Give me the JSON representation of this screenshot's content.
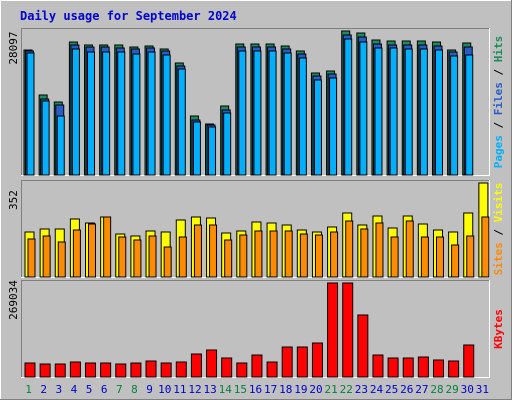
{
  "title": "Daily usage for September 2024",
  "colors": {
    "background": "#C0C0C0",
    "panel_bg": "#C0C0C0",
    "title": "#0000CC",
    "hits": "#1E8C5A",
    "files": "#2A5CC8",
    "pages": "#00B0FF",
    "visits": "#FFFF00",
    "sites": "#FF8C00",
    "kbytes": "#FF0000",
    "weekend_label": "#008040",
    "weekday_label": "#0000CC"
  },
  "chart_data": [
    {
      "type": "bar",
      "panel": "hits_files_pages",
      "ymax_label": "28097",
      "ymax": 28097,
      "legend": [
        "Pages",
        "Files",
        "Hits"
      ],
      "categories": [
        "1",
        "2",
        "3",
        "4",
        "5",
        "6",
        "7",
        "8",
        "9",
        "10",
        "11",
        "12",
        "13",
        "14",
        "15",
        "16",
        "17",
        "18",
        "19",
        "20",
        "21",
        "22",
        "23",
        "24",
        "25",
        "26",
        "27",
        "28",
        "29",
        "30",
        "31"
      ],
      "series": [
        {
          "name": "Hits",
          "values": [
            24440,
            15680,
            14270,
            25990,
            25310,
            25310,
            25310,
            25030,
            25240,
            24660,
            21830,
            11490,
            10040,
            13370,
            25560,
            25510,
            25560,
            25190,
            24100,
            19880,
            20250,
            28097,
            27710,
            26330,
            26210,
            26060,
            26060,
            25970,
            24440,
            25780,
            0
          ]
        },
        {
          "name": "Files",
          "values": [
            24200,
            14850,
            13600,
            25450,
            24900,
            24900,
            24750,
            24500,
            24750,
            24100,
            21300,
            10750,
            9670,
            12680,
            25050,
            25000,
            25050,
            24670,
            23570,
            19370,
            19700,
            27300,
            26960,
            25580,
            25460,
            25300,
            25300,
            25250,
            23930,
            25000,
            0
          ]
        },
        {
          "name": "Pages",
          "values": [
            23810,
            14410,
            11550,
            24660,
            24070,
            24070,
            23990,
            23590,
            24070,
            23440,
            20650,
            10400,
            9280,
            12140,
            24280,
            24150,
            24280,
            23890,
            22750,
            18590,
            18920,
            26540,
            25990,
            24790,
            24700,
            24580,
            24510,
            24450,
            23130,
            23420,
            0
          ]
        }
      ]
    },
    {
      "type": "bar",
      "panel": "visits_sites",
      "ymax_label": "352",
      "ymax": 352,
      "legend": [
        "Sites",
        "Visits"
      ],
      "categories": [
        "1",
        "2",
        "3",
        "4",
        "5",
        "6",
        "7",
        "8",
        "9",
        "10",
        "11",
        "12",
        "13",
        "14",
        "15",
        "16",
        "17",
        "18",
        "19",
        "20",
        "21",
        "22",
        "23",
        "24",
        "25",
        "26",
        "27",
        "28",
        "29",
        "30",
        "31"
      ],
      "series": [
        {
          "name": "Visits",
          "values": [
            170,
            178,
            178,
            218,
            202,
            226,
            160,
            152,
            172,
            170,
            214,
            226,
            220,
            166,
            172,
            206,
            202,
            196,
            176,
            170,
            188,
            238,
            196,
            230,
            182,
            230,
            200,
            176,
            170,
            238,
            352
          ]
        },
        {
          "name": "Sites",
          "values": [
            142,
            152,
            132,
            176,
            198,
            224,
            148,
            140,
            152,
            114,
            148,
            194,
            194,
            140,
            156,
            172,
            172,
            172,
            162,
            156,
            168,
            210,
            180,
            204,
            148,
            210,
            148,
            148,
            118,
            154,
            224
          ]
        }
      ]
    },
    {
      "type": "bar",
      "panel": "kbytes",
      "ymax_label": "269034",
      "ymax": 269034,
      "legend": [
        "KBytes"
      ],
      "categories": [
        "1",
        "2",
        "3",
        "4",
        "5",
        "6",
        "7",
        "8",
        "9",
        "10",
        "11",
        "12",
        "13",
        "14",
        "15",
        "16",
        "17",
        "18",
        "19",
        "20",
        "21",
        "22",
        "23",
        "24",
        "25",
        "26",
        "27",
        "28",
        "29",
        "30",
        "31"
      ],
      "series": [
        {
          "name": "KBytes",
          "values": [
            40000,
            38000,
            36000,
            43000,
            39000,
            40000,
            36000,
            39000,
            47000,
            40000,
            42000,
            67000,
            78000,
            54000,
            40000,
            64000,
            42000,
            85000,
            85000,
            98000,
            269034,
            269034,
            178000,
            63000,
            54000,
            53000,
            56000,
            49000,
            47000,
            91000,
            0
          ]
        }
      ]
    }
  ],
  "x_labels": [
    {
      "label": "1",
      "weekend": true
    },
    {
      "label": "2",
      "weekend": false
    },
    {
      "label": "3",
      "weekend": false
    },
    {
      "label": "4",
      "weekend": false
    },
    {
      "label": "5",
      "weekend": false
    },
    {
      "label": "6",
      "weekend": false
    },
    {
      "label": "7",
      "weekend": true
    },
    {
      "label": "8",
      "weekend": true
    },
    {
      "label": "9",
      "weekend": false
    },
    {
      "label": "10",
      "weekend": false
    },
    {
      "label": "11",
      "weekend": false
    },
    {
      "label": "12",
      "weekend": false
    },
    {
      "label": "13",
      "weekend": false
    },
    {
      "label": "14",
      "weekend": true
    },
    {
      "label": "15",
      "weekend": true
    },
    {
      "label": "16",
      "weekend": false
    },
    {
      "label": "17",
      "weekend": false
    },
    {
      "label": "18",
      "weekend": false
    },
    {
      "label": "19",
      "weekend": false
    },
    {
      "label": "20",
      "weekend": false
    },
    {
      "label": "21",
      "weekend": true
    },
    {
      "label": "22",
      "weekend": true
    },
    {
      "label": "23",
      "weekend": false
    },
    {
      "label": "24",
      "weekend": false
    },
    {
      "label": "25",
      "weekend": false
    },
    {
      "label": "26",
      "weekend": false
    },
    {
      "label": "27",
      "weekend": false
    },
    {
      "label": "28",
      "weekend": true
    },
    {
      "label": "29",
      "weekend": true
    },
    {
      "label": "30",
      "weekend": false
    },
    {
      "label": "31",
      "weekend": false
    }
  ]
}
